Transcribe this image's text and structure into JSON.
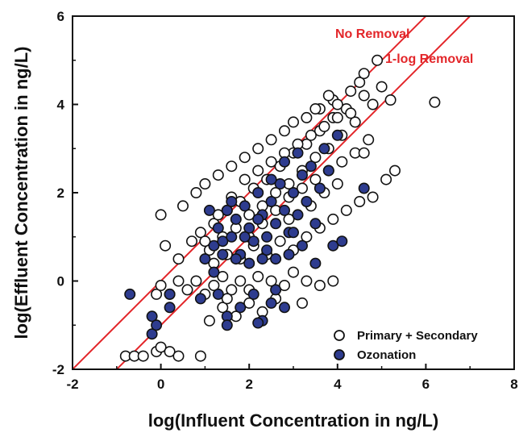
{
  "chart_data": {
    "type": "scatter",
    "xlabel": "log(Influent Concentration in ng/L)",
    "ylabel": "log(Effluent Concentration in ng/L)",
    "xlim": [
      -2,
      8
    ],
    "ylim": [
      -2,
      6
    ],
    "xticks": [
      "-2",
      "0",
      "2",
      "4",
      "6",
      "8"
    ],
    "yticks": [
      "-2",
      "0",
      "2",
      "4",
      "6"
    ],
    "grid": false,
    "legend_position": "bottom-right",
    "lines": [
      {
        "name": "No Removal",
        "intercept": 0,
        "color": "#e3262a"
      },
      {
        "name": "1-log Removal",
        "intercept": -1,
        "color": "#e3262a"
      }
    ],
    "series": [
      {
        "name": "Primary + Secondary",
        "marker": "open-circle",
        "fill": "#ffffff",
        "stroke": "#111111",
        "points": [
          [
            -0.8,
            -1.7
          ],
          [
            -0.6,
            -1.7
          ],
          [
            -0.4,
            -1.7
          ],
          [
            -0.1,
            -1.6
          ],
          [
            0.0,
            -1.5
          ],
          [
            0.2,
            -1.6
          ],
          [
            0.4,
            -1.7
          ],
          [
            0.9,
            -1.7
          ],
          [
            -0.1,
            -0.3
          ],
          [
            0.0,
            -0.1
          ],
          [
            0.2,
            -0.3
          ],
          [
            0.4,
            0.0
          ],
          [
            0.6,
            -0.2
          ],
          [
            0.8,
            0.0
          ],
          [
            1.0,
            -0.3
          ],
          [
            1.2,
            -0.1
          ],
          [
            1.4,
            0.1
          ],
          [
            1.6,
            -0.2
          ],
          [
            1.8,
            0.0
          ],
          [
            2.0,
            -0.2
          ],
          [
            2.2,
            0.1
          ],
          [
            2.5,
            0.0
          ],
          [
            2.8,
            -0.1
          ],
          [
            3.0,
            0.2
          ],
          [
            3.3,
            0.0
          ],
          [
            3.6,
            -0.1
          ],
          [
            3.9,
            0.0
          ],
          [
            0.1,
            0.8
          ],
          [
            0.4,
            0.5
          ],
          [
            0.7,
            0.9
          ],
          [
            0.9,
            1.1
          ],
          [
            1.1,
            0.7
          ],
          [
            1.2,
            1.3
          ],
          [
            1.4,
            1.0
          ],
          [
            1.5,
            1.6
          ],
          [
            1.7,
            1.2
          ],
          [
            1.8,
            1.8
          ],
          [
            2.0,
            1.5
          ],
          [
            2.1,
            2.1
          ],
          [
            2.3,
            1.7
          ],
          [
            2.4,
            2.3
          ],
          [
            2.6,
            2.0
          ],
          [
            2.7,
            2.6
          ],
          [
            2.9,
            2.2
          ],
          [
            3.0,
            2.9
          ],
          [
            3.2,
            2.5
          ],
          [
            3.3,
            3.1
          ],
          [
            3.5,
            2.8
          ],
          [
            3.6,
            3.4
          ],
          [
            3.8,
            3.0
          ],
          [
            3.9,
            3.7
          ],
          [
            4.1,
            3.3
          ],
          [
            4.2,
            3.9
          ],
          [
            4.4,
            3.6
          ],
          [
            4.6,
            4.2
          ],
          [
            4.8,
            4.0
          ],
          [
            5.0,
            4.4
          ],
          [
            5.2,
            4.1
          ],
          [
            0.0,
            1.5
          ],
          [
            0.5,
            1.7
          ],
          [
            0.8,
            2.0
          ],
          [
            1.0,
            2.2
          ],
          [
            1.3,
            2.4
          ],
          [
            1.6,
            2.6
          ],
          [
            1.9,
            2.8
          ],
          [
            2.2,
            3.0
          ],
          [
            2.5,
            3.2
          ],
          [
            2.8,
            3.4
          ],
          [
            3.0,
            3.6
          ],
          [
            3.3,
            3.7
          ],
          [
            3.6,
            3.9
          ],
          [
            3.9,
            4.1
          ],
          [
            4.3,
            4.3
          ],
          [
            4.5,
            4.5
          ],
          [
            4.6,
            4.7
          ],
          [
            4.9,
            5.0
          ],
          [
            1.2,
            0.4
          ],
          [
            1.5,
            0.6
          ],
          [
            1.8,
            0.5
          ],
          [
            2.1,
            0.8
          ],
          [
            2.4,
            0.6
          ],
          [
            2.7,
            0.9
          ],
          [
            3.0,
            0.7
          ],
          [
            3.3,
            1.0
          ],
          [
            3.6,
            1.2
          ],
          [
            3.9,
            1.4
          ],
          [
            4.2,
            1.6
          ],
          [
            4.5,
            1.8
          ],
          [
            4.8,
            1.9
          ],
          [
            5.1,
            2.3
          ],
          [
            5.3,
            2.5
          ],
          [
            6.2,
            4.05
          ],
          [
            1.0,
            0.9
          ],
          [
            1.3,
            1.5
          ],
          [
            1.6,
            1.9
          ],
          [
            1.9,
            2.3
          ],
          [
            2.2,
            2.5
          ],
          [
            2.5,
            2.7
          ],
          [
            2.8,
            2.9
          ],
          [
            3.1,
            3.1
          ],
          [
            3.4,
            3.3
          ],
          [
            3.7,
            3.5
          ],
          [
            4.0,
            3.7
          ],
          [
            4.3,
            3.8
          ],
          [
            2.0,
            1.0
          ],
          [
            2.3,
            1.3
          ],
          [
            2.6,
            1.6
          ],
          [
            2.9,
            1.9
          ],
          [
            3.2,
            2.1
          ],
          [
            3.5,
            2.3
          ],
          [
            3.8,
            2.5
          ],
          [
            4.1,
            2.7
          ],
          [
            4.4,
            2.9
          ],
          [
            4.7,
            3.2
          ],
          [
            1.4,
            -0.6
          ],
          [
            1.7,
            -0.8
          ],
          [
            2.0,
            -0.5
          ],
          [
            2.3,
            -0.7
          ],
          [
            2.6,
            -0.4
          ],
          [
            1.1,
            -0.9
          ],
          [
            1.5,
            -0.4
          ],
          [
            3.2,
            -0.5
          ],
          [
            2.9,
            1.4
          ],
          [
            3.4,
            1.7
          ],
          [
            3.7,
            2.0
          ],
          [
            4.0,
            2.2
          ],
          [
            4.6,
            2.9
          ],
          [
            4.0,
            4.0
          ],
          [
            3.5,
            3.9
          ],
          [
            3.8,
            4.2
          ]
        ]
      },
      {
        "name": "Ozonation",
        "marker": "filled-circle",
        "fill": "#2e3c8f",
        "stroke": "#111111",
        "points": [
          [
            -0.7,
            -0.3
          ],
          [
            -0.2,
            -0.8
          ],
          [
            -0.2,
            -1.2
          ],
          [
            -0.1,
            -1.0
          ],
          [
            0.2,
            -0.6
          ],
          [
            0.2,
            -0.3
          ],
          [
            1.1,
            1.6
          ],
          [
            1.2,
            0.8
          ],
          [
            1.3,
            1.2
          ],
          [
            1.4,
            0.9
          ],
          [
            1.5,
            1.6
          ],
          [
            1.6,
            1.0
          ],
          [
            1.7,
            1.4
          ],
          [
            1.8,
            0.6
          ],
          [
            1.9,
            1.7
          ],
          [
            2.0,
            1.2
          ],
          [
            2.1,
            0.9
          ],
          [
            2.2,
            2.0
          ],
          [
            2.3,
            1.5
          ],
          [
            2.4,
            1.0
          ],
          [
            2.5,
            1.8
          ],
          [
            2.6,
            1.3
          ],
          [
            2.7,
            2.2
          ],
          [
            2.8,
            1.6
          ],
          [
            2.9,
            1.1
          ],
          [
            3.0,
            2.0
          ],
          [
            3.1,
            1.5
          ],
          [
            3.2,
            2.4
          ],
          [
            3.3,
            1.8
          ],
          [
            3.4,
            2.6
          ],
          [
            3.5,
            1.3
          ],
          [
            3.6,
            2.1
          ],
          [
            3.7,
            3.0
          ],
          [
            3.8,
            2.5
          ],
          [
            4.0,
            3.3
          ],
          [
            1.0,
            0.5
          ],
          [
            1.2,
            0.2
          ],
          [
            1.4,
            0.6
          ],
          [
            1.7,
            0.5
          ],
          [
            2.0,
            0.4
          ],
          [
            2.3,
            0.5
          ],
          [
            2.6,
            0.5
          ],
          [
            2.9,
            0.6
          ],
          [
            3.2,
            0.8
          ],
          [
            3.5,
            0.4
          ],
          [
            3.9,
            0.8
          ],
          [
            4.1,
            0.9
          ],
          [
            4.6,
            2.1
          ],
          [
            0.9,
            -0.4
          ],
          [
            1.3,
            -0.3
          ],
          [
            1.5,
            -0.8
          ],
          [
            1.8,
            -0.6
          ],
          [
            2.1,
            -0.3
          ],
          [
            2.3,
            -0.9
          ],
          [
            2.5,
            -0.5
          ],
          [
            2.8,
            -0.6
          ],
          [
            1.5,
            -1.0
          ],
          [
            2.2,
            -0.95
          ],
          [
            2.6,
            -0.2
          ],
          [
            1.9,
            1.0
          ],
          [
            2.2,
            1.4
          ],
          [
            2.5,
            2.3
          ],
          [
            2.8,
            2.7
          ],
          [
            3.1,
            2.9
          ],
          [
            1.6,
            1.8
          ],
          [
            2.4,
            0.7
          ],
          [
            3.0,
            1.1
          ]
        ]
      }
    ]
  }
}
